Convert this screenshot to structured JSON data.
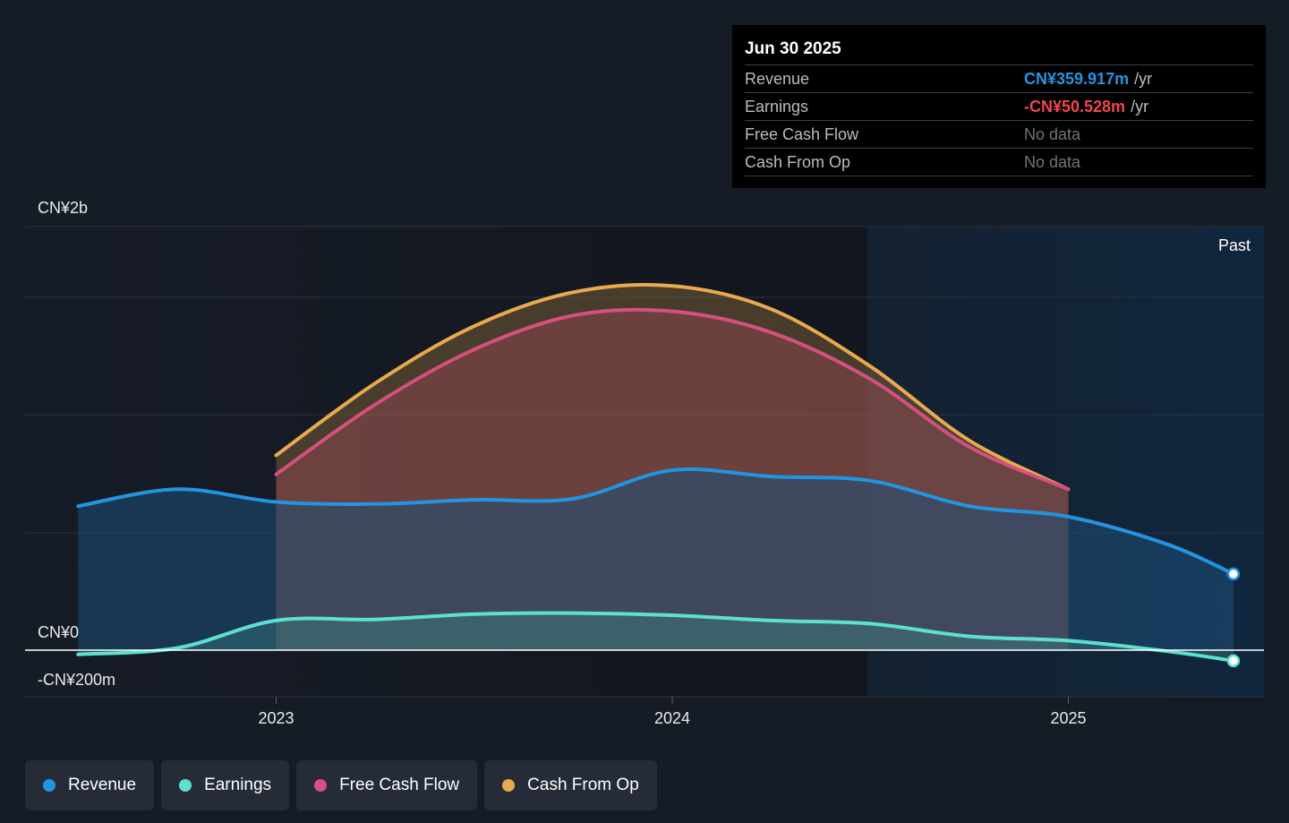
{
  "chart_data": {
    "type": "area",
    "x_ticks": [
      "2023",
      "2024",
      "2025"
    ],
    "y_ticks": [
      "CN¥2b",
      "CN¥0",
      "-CN¥200m"
    ],
    "region_label": "Past",
    "series": [
      {
        "name": "Revenue",
        "color": "#2394df",
        "points": [
          [
            "2022-07",
            680
          ],
          [
            "2022-10",
            760
          ],
          [
            "2023-01",
            700
          ],
          [
            "2023-04",
            690
          ],
          [
            "2023-07",
            710
          ],
          [
            "2023-10",
            715
          ],
          [
            "2024-01",
            850
          ],
          [
            "2024-04",
            820
          ],
          [
            "2024-07",
            800
          ],
          [
            "2024-10",
            680
          ],
          [
            "2025-01",
            630
          ],
          [
            "2025-04",
            500
          ],
          [
            "2025-06",
            360
          ]
        ]
      },
      {
        "name": "Earnings",
        "color": "#5de0cf",
        "points": [
          [
            "2022-07",
            -20
          ],
          [
            "2022-10",
            10
          ],
          [
            "2023-01",
            140
          ],
          [
            "2023-04",
            145
          ],
          [
            "2023-07",
            170
          ],
          [
            "2023-10",
            175
          ],
          [
            "2024-01",
            165
          ],
          [
            "2024-04",
            140
          ],
          [
            "2024-07",
            125
          ],
          [
            "2024-10",
            65
          ],
          [
            "2025-01",
            45
          ],
          [
            "2025-04",
            -5
          ],
          [
            "2025-06",
            -50
          ]
        ]
      },
      {
        "name": "Free Cash Flow",
        "color": "#d5507e",
        "points": [
          [
            "2023-01",
            830
          ],
          [
            "2023-04",
            1160
          ],
          [
            "2023-07",
            1420
          ],
          [
            "2023-10",
            1580
          ],
          [
            "2024-01",
            1600
          ],
          [
            "2024-04",
            1500
          ],
          [
            "2024-07",
            1280
          ],
          [
            "2024-10",
            960
          ],
          [
            "2025-01",
            760
          ]
        ]
      },
      {
        "name": "Cash From Op",
        "color": "#e9a94f",
        "points": [
          [
            "2023-01",
            920
          ],
          [
            "2023-04",
            1260
          ],
          [
            "2023-07",
            1530
          ],
          [
            "2023-10",
            1690
          ],
          [
            "2024-01",
            1720
          ],
          [
            "2024-04",
            1610
          ],
          [
            "2024-07",
            1340
          ],
          [
            "2024-10",
            990
          ],
          [
            "2025-01",
            760
          ]
        ]
      }
    ]
  },
  "tooltip": {
    "date": "Jun 30 2025",
    "rows": [
      {
        "label": "Revenue",
        "value": "CN¥359.917m",
        "unit": "/yr",
        "color": "#2394df"
      },
      {
        "label": "Earnings",
        "value": "-CN¥50.528m",
        "unit": "/yr",
        "color": "#f0464f"
      },
      {
        "label": "Free Cash Flow",
        "value": "No data",
        "unit": ""
      },
      {
        "label": "Cash From Op",
        "value": "No data",
        "unit": ""
      }
    ]
  },
  "legend": [
    {
      "label": "Revenue",
      "color": "#2394df"
    },
    {
      "label": "Earnings",
      "color": "#5de0cf"
    },
    {
      "label": "Free Cash Flow",
      "color": "#d5507e"
    },
    {
      "label": "Cash From Op",
      "color": "#e9a94f"
    }
  ]
}
